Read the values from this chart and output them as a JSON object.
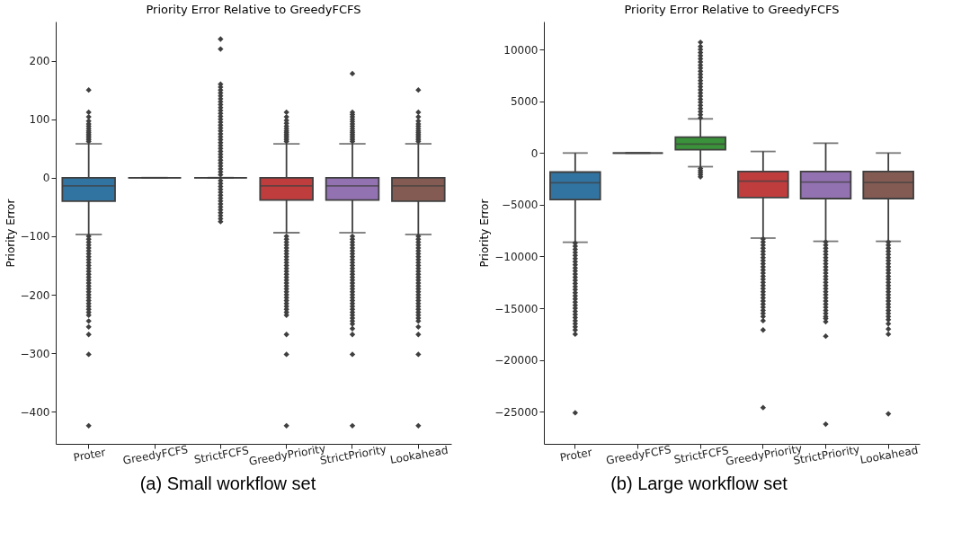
{
  "chart_data": [
    {
      "type": "box",
      "title": "Priority Error Relative to GreedyFCFS",
      "ylabel": "Priority Error",
      "annotations": [
        "(a) Small workflow set"
      ],
      "categories": [
        "Proter",
        "GreedyFCFS",
        "StrictFCFS",
        "GreedyPriority",
        "StrictPriority",
        "Lookahead"
      ],
      "colors": [
        "#3274a1",
        "#3f3f3f",
        "#3f3f3f",
        "#c03d3e",
        "#9372b2",
        "#845b53"
      ],
      "ylim": [
        -455,
        267
      ],
      "yticks": [
        -400,
        -300,
        -200,
        -100,
        0,
        100,
        200
      ],
      "boxes": [
        {
          "low": -97,
          "q1": -40,
          "median": -14,
          "q3": 0,
          "high": 58,
          "outliers": [
            62,
            65,
            68,
            71,
            74,
            77,
            80,
            84,
            88,
            92,
            97,
            104,
            112,
            150,
            -100,
            -105,
            -110,
            -115,
            -120,
            -125,
            -130,
            -135,
            -140,
            -145,
            -150,
            -155,
            -160,
            -165,
            -170,
            -175,
            -180,
            -185,
            -190,
            -195,
            -200,
            -205,
            -210,
            -215,
            -220,
            -225,
            -230,
            -235,
            -245,
            -255,
            -268,
            -302,
            -424
          ]
        },
        {
          "low": 0,
          "q1": 0,
          "median": 0,
          "q3": 0,
          "high": 0
        },
        {
          "low": 0,
          "q1": 0,
          "median": 0,
          "q3": 0,
          "high": 0,
          "outliers": [
            -75,
            -70,
            -65,
            -60,
            -55,
            -50,
            -45,
            -40,
            -35,
            -30,
            -25,
            -20,
            -15,
            -10,
            -5,
            5,
            10,
            15,
            20,
            25,
            30,
            35,
            40,
            45,
            50,
            55,
            60,
            65,
            70,
            75,
            80,
            85,
            90,
            95,
            100,
            105,
            110,
            115,
            120,
            125,
            130,
            135,
            140,
            145,
            150,
            155,
            160,
            220,
            237
          ]
        },
        {
          "low": -94,
          "q1": -38,
          "median": -14,
          "q3": 0,
          "high": 58,
          "outliers": [
            62,
            65,
            68,
            71,
            74,
            77,
            80,
            84,
            88,
            93,
            98,
            104,
            112,
            -100,
            -105,
            -110,
            -115,
            -120,
            -125,
            -130,
            -135,
            -140,
            -145,
            -150,
            -155,
            -160,
            -165,
            -170,
            -175,
            -180,
            -185,
            -190,
            -195,
            -200,
            -205,
            -210,
            -215,
            -220,
            -225,
            -230,
            -235,
            -268,
            -302,
            -424
          ]
        },
        {
          "low": -94,
          "q1": -38,
          "median": -14,
          "q3": 0,
          "high": 58,
          "outliers": [
            62,
            65,
            68,
            71,
            74,
            77,
            80,
            84,
            88,
            92,
            96,
            100,
            104,
            108,
            112,
            178,
            -100,
            -105,
            -110,
            -115,
            -120,
            -125,
            -130,
            -135,
            -140,
            -145,
            -150,
            -155,
            -160,
            -165,
            -170,
            -175,
            -180,
            -185,
            -190,
            -195,
            -200,
            -205,
            -210,
            -215,
            -220,
            -225,
            -230,
            -235,
            -240,
            -245,
            -250,
            -258,
            -268,
            -302,
            -424
          ]
        },
        {
          "low": -97,
          "q1": -40,
          "median": -14,
          "q3": 0,
          "high": 58,
          "outliers": [
            62,
            65,
            68,
            71,
            74,
            77,
            80,
            84,
            88,
            92,
            97,
            104,
            112,
            150,
            -100,
            -105,
            -110,
            -115,
            -120,
            -125,
            -130,
            -135,
            -140,
            -145,
            -150,
            -155,
            -160,
            -165,
            -170,
            -175,
            -180,
            -185,
            -190,
            -195,
            -200,
            -205,
            -210,
            -215,
            -220,
            -225,
            -230,
            -235,
            -240,
            -245,
            -255,
            -268,
            -302,
            -424
          ]
        }
      ]
    },
    {
      "type": "box",
      "title": "Priority Error Relative to GreedyFCFS",
      "ylabel": "Priority Error",
      "annotations": [
        "(b) Large workflow set"
      ],
      "categories": [
        "Proter",
        "GreedyFCFS",
        "StrictFCFS",
        "GreedyPriority",
        "StrictPriority",
        "Lookahead"
      ],
      "colors": [
        "#3274a1",
        "#3f3f3f",
        "#3a923a",
        "#c03d3e",
        "#9372b2",
        "#845b53"
      ],
      "ylim": [
        -28100,
        12700
      ],
      "yticks": [
        -25000,
        -20000,
        -15000,
        -10000,
        -5000,
        0,
        5000,
        10000
      ],
      "boxes": [
        {
          "low": -8620,
          "q1": -4500,
          "median": -2870,
          "q3": -1840,
          "high": 0,
          "outliers": [
            -8700,
            -9000,
            -9300,
            -9600,
            -9900,
            -10200,
            -10500,
            -10800,
            -11100,
            -11400,
            -11700,
            -12000,
            -12300,
            -12600,
            -12900,
            -13200,
            -13500,
            -13800,
            -14100,
            -14400,
            -14700,
            -15000,
            -15300,
            -15600,
            -15900,
            -16200,
            -16500,
            -16800,
            -17100,
            -17500,
            -25100
          ]
        },
        {
          "low": 0,
          "q1": 0,
          "median": 0,
          "q3": 0,
          "high": 0
        },
        {
          "low": -1320,
          "q1": 320,
          "median": 860,
          "q3": 1530,
          "high": 3300,
          "outliers": [
            3400,
            3700,
            4000,
            4300,
            4600,
            4900,
            5200,
            5500,
            5800,
            6100,
            6400,
            6700,
            7000,
            7300,
            7600,
            7900,
            8200,
            8500,
            8800,
            9100,
            9400,
            9700,
            10000,
            10300,
            10700,
            -1500,
            -1700,
            -1900,
            -2100,
            -2300
          ]
        },
        {
          "low": -8220,
          "q1": -4300,
          "median": -2720,
          "q3": -1780,
          "high": 150,
          "outliers": [
            -8300,
            -8600,
            -8900,
            -9200,
            -9500,
            -9800,
            -10100,
            -10400,
            -10700,
            -11000,
            -11300,
            -11600,
            -11900,
            -12200,
            -12500,
            -12800,
            -13100,
            -13400,
            -13700,
            -14000,
            -14300,
            -14600,
            -14900,
            -15200,
            -15500,
            -15800,
            -16200,
            -17100,
            -24600
          ]
        },
        {
          "low": -8530,
          "q1": -4400,
          "median": -2800,
          "q3": -1780,
          "high": 950,
          "outliers": [
            -8600,
            -8900,
            -9200,
            -9500,
            -9800,
            -10100,
            -10400,
            -10700,
            -11000,
            -11300,
            -11600,
            -11900,
            -12200,
            -12500,
            -12800,
            -13100,
            -13400,
            -13700,
            -14000,
            -14300,
            -14600,
            -14900,
            -15200,
            -15500,
            -15800,
            -16000,
            -16300,
            -17700,
            -26200
          ]
        },
        {
          "low": -8530,
          "q1": -4400,
          "median": -2850,
          "q3": -1780,
          "high": 0,
          "outliers": [
            -8600,
            -8900,
            -9200,
            -9500,
            -9800,
            -10100,
            -10400,
            -10700,
            -11000,
            -11300,
            -11600,
            -11900,
            -12200,
            -12500,
            -12800,
            -13100,
            -13400,
            -13700,
            -14000,
            -14300,
            -14600,
            -14900,
            -15200,
            -15500,
            -15800,
            -16100,
            -16500,
            -17000,
            -17500,
            -25200
          ]
        }
      ]
    }
  ]
}
